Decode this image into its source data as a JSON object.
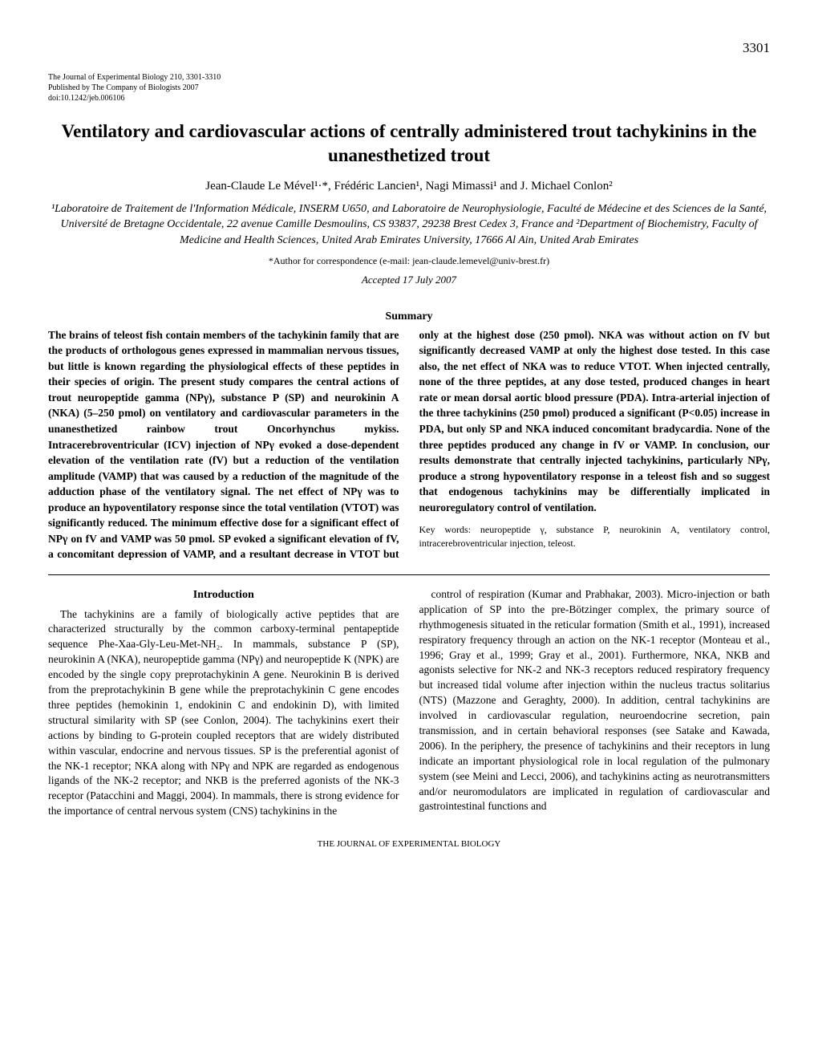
{
  "page_number": "3301",
  "journal_line1": "The Journal of Experimental Biology 210, 3301-3310",
  "journal_line2": "Published by The Company of Biologists 2007",
  "journal_line3": "doi:10.1242/jeb.006106",
  "title": "Ventilatory and cardiovascular actions of centrally administered trout tachykinins in the unanesthetized trout",
  "authors": "Jean-Claude Le Mével¹·*, Frédéric Lancien¹, Nagi Mimassi¹ and J. Michael Conlon²",
  "affiliations": "¹Laboratoire de Traitement de l'Information Médicale, INSERM U650, and Laboratoire de Neurophysiologie, Faculté de Médecine et des Sciences de la Santé, Université de Bretagne Occidentale, 22 avenue Camille Desmoulins, CS 93837, 29238 Brest Cedex 3, France and ²Department of Biochemistry, Faculty of Medicine and Health Sciences, United Arab Emirates University, 17666 Al Ain, United Arab Emirates",
  "correspondence": "*Author for correspondence (e-mail: jean-claude.lemevel@univ-brest.fr)",
  "accepted": "Accepted 17 July 2007",
  "summary_heading": "Summary",
  "summary_text": "The brains of teleost fish contain members of the tachykinin family that are the products of orthologous genes expressed in mammalian nervous tissues, but little is known regarding the physiological effects of these peptides in their species of origin. The present study compares the central actions of trout neuropeptide gamma (NPγ), substance P (SP) and neurokinin A (NKA) (5–250 pmol) on ventilatory and cardiovascular parameters in the unanesthetized rainbow trout Oncorhynchus mykiss. Intracerebroventricular (ICV) injection of NPγ evoked a dose-dependent elevation of the ventilation rate (fV) but a reduction of the ventilation amplitude (VAMP) that was caused by a reduction of the magnitude of the adduction phase of the ventilatory signal. The net effect of NPγ was to produce an hypoventilatory response since the total ventilation (VTOT) was significantly reduced. The minimum effective dose for a significant effect of NPγ on fV and VAMP was 50 pmol. SP evoked a significant elevation of fV, a concomitant depression of VAMP, and a resultant decrease in VTOT but only at the highest dose (250 pmol). NKA was without action on fV but significantly decreased VAMP at only the highest dose tested. In this case also, the net effect of NKA was to reduce VTOT. When injected centrally, none of the three peptides, at any dose tested, produced changes in heart rate or mean dorsal aortic blood pressure (PDA). Intra-arterial injection of the three tachykinins (250 pmol) produced a significant (P<0.05) increase in PDA, but only SP and NKA induced concomitant bradycardia. None of the three peptides produced any change in fV or VAMP. In conclusion, our results demonstrate that centrally injected tachykinins, particularly NPγ, produce a strong hypoventilatory response in a teleost fish and so suggest that endogenous tachykinins may be differentially implicated in neuroregulatory control of ventilation.",
  "keywords": "Key words: neuropeptide γ, substance P, neurokinin A, ventilatory control, intracerebroventricular injection, teleost.",
  "intro_heading": "Introduction",
  "intro_para1": "The tachykinins are a family of biologically active peptides that are characterized structurally by the common carboxy-terminal pentapeptide sequence Phe-Xaa-Gly-Leu-Met-NH₂. In mammals, substance P (SP), neurokinin A (NKA), neuropeptide gamma (NPγ) and neuropeptide K (NPK) are encoded by the single copy preprotachykinin A gene. Neurokinin B is derived from the preprotachykinin B gene while the preprotachykinin C gene encodes three peptides (hemokinin 1, endokinin C and endokinin D), with limited structural similarity with SP (see Conlon, 2004). The tachykinins exert their actions by binding to G-protein coupled receptors that are widely distributed within vascular, endocrine and nervous tissues. SP is the preferential agonist of the NK-1 receptor; NKA along with NPγ and NPK are regarded as endogenous ligands of the NK-2 receptor; and NKB is the preferred agonists of the NK-3 receptor (Patacchini and Maggi, 2004). In mammals, there is strong evidence for the importance of central nervous system (CNS) tachykinins in the",
  "intro_para2": "control of respiration (Kumar and Prabhakar, 2003). Micro-injection or bath application of SP into the pre-Bötzinger complex, the primary source of rhythmogenesis situated in the reticular formation (Smith et al., 1991), increased respiratory frequency through an action on the NK-1 receptor (Monteau et al., 1996; Gray et al., 1999; Gray et al., 2001). Furthermore, NKA, NKB and agonists selective for NK-2 and NK-3 receptors reduced respiratory frequency but increased tidal volume after injection within the nucleus tractus solitarius (NTS) (Mazzone and Geraghty, 2000). In addition, central tachykinins are involved in cardiovascular regulation, neuroendocrine secretion, pain transmission, and in certain behavioral responses (see Satake and Kawada, 2006). In the periphery, the presence of tachykinins and their receptors in lung indicate an important physiological role in local regulation of the pulmonary system (see Meini and Lecci, 2006), and tachykinins acting as neurotransmitters and/or neuromodulators are implicated in regulation of cardiovascular and gastrointestinal functions and",
  "footer": "THE JOURNAL OF EXPERIMENTAL BIOLOGY"
}
